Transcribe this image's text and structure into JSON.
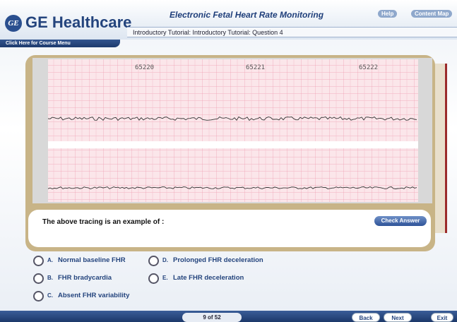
{
  "header": {
    "logo": "GE Healthcare",
    "title": "Electronic Fetal Heart Rate Monitoring",
    "links": [
      "Help",
      "Content Map"
    ],
    "breadcrumb": "Introductory Tutorial: Introductory Tutorial: Question 4",
    "menu": "Click Here for Course Menu"
  },
  "tracing": {
    "labels": [
      "65220",
      "65221",
      "65222"
    ]
  },
  "question": {
    "prompt": "The above tracing is an example of :",
    "button": "Check Answer",
    "options": [
      {
        "letter": "A.",
        "text": "Normal baseline FHR"
      },
      {
        "letter": "B.",
        "text": "FHR bradycardia"
      },
      {
        "letter": "C.",
        "text": "Absent FHR variability"
      },
      {
        "letter": "D.",
        "text": "Prolonged FHR deceleration"
      },
      {
        "letter": "E.",
        "text": "Late FHR deceleration"
      }
    ]
  },
  "footer": {
    "page": "9 of 52",
    "buttons": [
      "Back",
      "Next",
      "Exit"
    ]
  }
}
